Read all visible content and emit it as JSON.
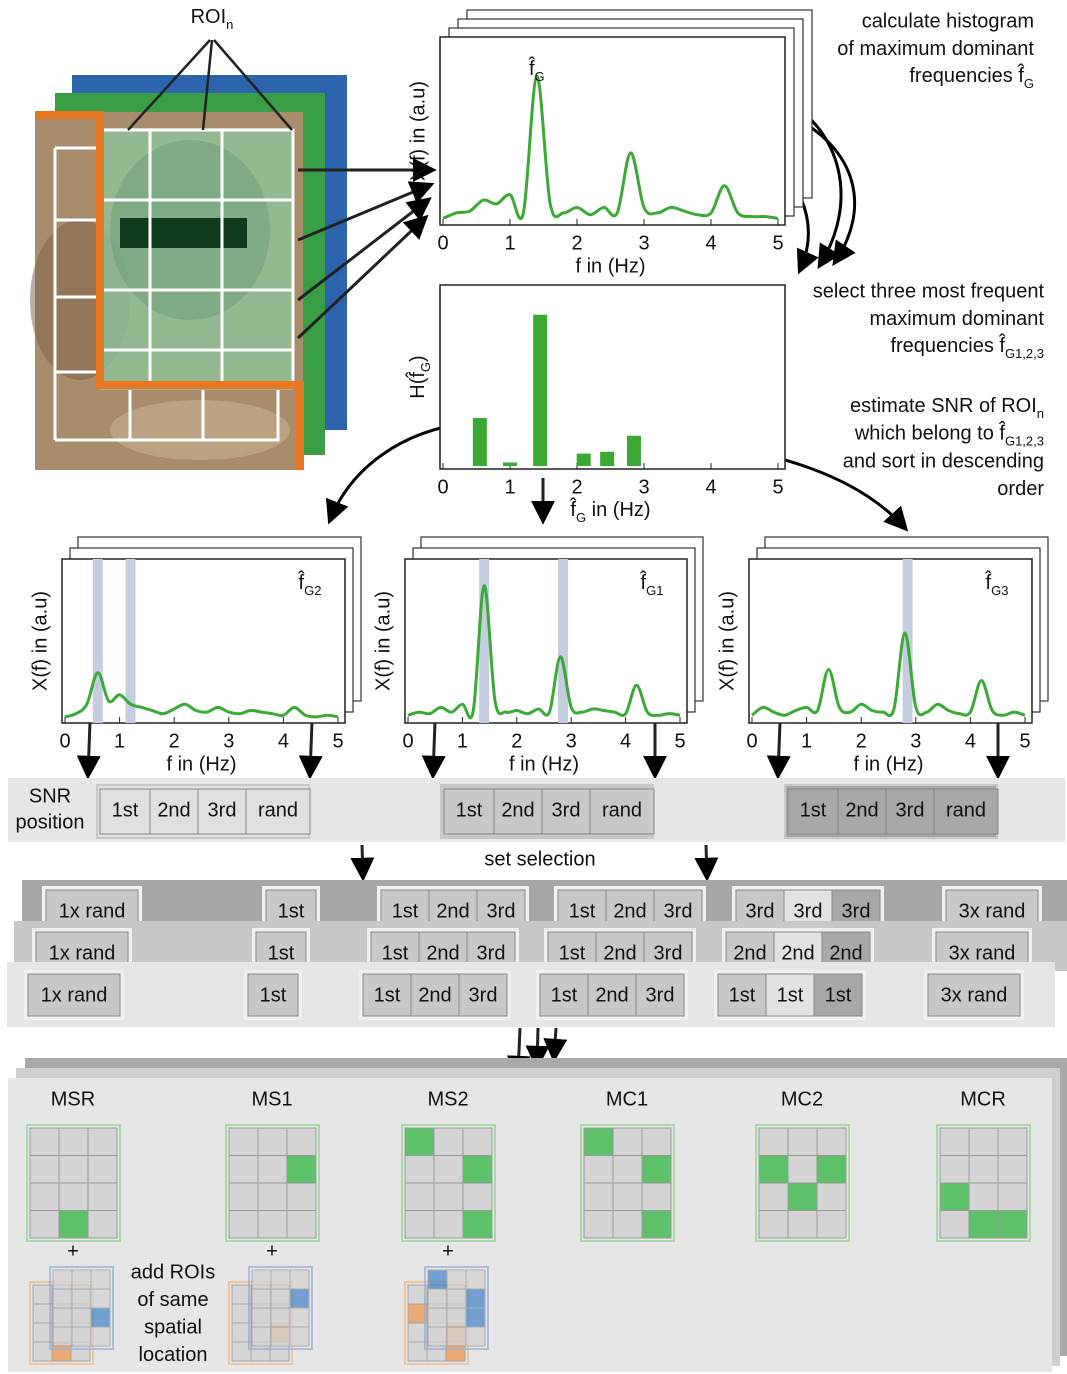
{
  "roi_label": {
    "text": "ROI",
    "sub": "n"
  },
  "steps": [
    [
      "calculate histogram",
      "of maximum dominant",
      {
        "text": "frequencies f̂",
        "sub": "G"
      }
    ],
    [
      "select three most frequent",
      "maximum dominant",
      {
        "text": "frequencies f̂",
        "sub": "G1,2,3"
      }
    ],
    [
      {
        "text": "estimate SNR of ROI",
        "sub": "n"
      },
      {
        "text": "which belong to f̂",
        "sub": "G1,2,3"
      },
      "and sort in descending",
      "order"
    ]
  ],
  "spectrum": {
    "x": [
      0,
      0.2,
      0.4,
      0.6,
      0.8,
      1.0,
      1.2,
      1.4,
      1.6,
      1.8,
      2.0,
      2.2,
      2.4,
      2.6,
      2.8,
      3.0,
      3.2,
      3.4,
      3.6,
      3.8,
      4.0,
      4.2,
      4.4,
      4.6,
      4.8,
      5.0
    ],
    "values": [
      0.02,
      0.05,
      0.06,
      0.12,
      0.1,
      0.15,
      0.05,
      0.8,
      0.1,
      0.05,
      0.08,
      0.04,
      0.08,
      0.05,
      0.38,
      0.08,
      0.05,
      0.08,
      0.06,
      0.04,
      0.05,
      0.2,
      0.05,
      0.03,
      0.03,
      0.02
    ],
    "xlim": [
      0,
      5
    ],
    "ylim": [
      0,
      1
    ],
    "xticks": [
      0,
      1,
      2,
      3,
      4,
      5
    ],
    "ylabel": "X(f) in (a.u)",
    "xlabel": "f in (Hz)",
    "peak_label": {
      "text": "f̂",
      "sub": "G"
    },
    "color": "#3aaa35"
  },
  "histogram": {
    "x": [
      0.55,
      1.0,
      1.45,
      2.1,
      2.45,
      2.85
    ],
    "values": [
      0.27,
      0.02,
      0.85,
      0.07,
      0.08,
      0.17
    ],
    "xlim": [
      0,
      5
    ],
    "ylim": [
      0,
      1
    ],
    "xticks": [
      0,
      1,
      2,
      3,
      4,
      5
    ],
    "ylabel": {
      "text": "H(f̂",
      "sub": "G",
      "tail": ")"
    },
    "xlabel": {
      "text": "f̂",
      "sub": "G",
      "tail": " in (Hz)"
    },
    "color": "#3aaa35"
  },
  "dominant_spectra": [
    {
      "peak_label": {
        "text": "f̂",
        "sub": "G2"
      },
      "x": [
        0,
        0.2,
        0.4,
        0.6,
        0.8,
        1.0,
        1.2,
        1.4,
        1.6,
        1.8,
        2.0,
        2.2,
        2.4,
        2.6,
        2.8,
        3.0,
        3.2,
        3.4,
        3.6,
        3.8,
        4.0,
        4.2,
        4.4,
        4.6,
        4.8,
        5.0
      ],
      "values": [
        0.02,
        0.04,
        0.1,
        0.3,
        0.12,
        0.16,
        0.1,
        0.08,
        0.06,
        0.04,
        0.07,
        0.1,
        0.06,
        0.05,
        0.08,
        0.05,
        0.04,
        0.06,
        0.05,
        0.04,
        0.03,
        0.08,
        0.03,
        0.02,
        0.03,
        0.02
      ],
      "bands": [
        0.6,
        1.2
      ],
      "xlim": [
        0,
        5
      ],
      "ylim": [
        0,
        1
      ],
      "xticks": [
        0,
        1,
        2,
        3,
        4,
        5
      ],
      "ylabel": "X(f) in (a.u)",
      "xlabel": "f in (Hz)",
      "color": "#3aaa35"
    },
    {
      "peak_label": {
        "text": "f̂",
        "sub": "G1"
      },
      "x": [
        0,
        0.2,
        0.4,
        0.6,
        0.8,
        1.0,
        1.2,
        1.4,
        1.6,
        1.8,
        2.0,
        2.2,
        2.4,
        2.6,
        2.8,
        3.0,
        3.2,
        3.4,
        3.6,
        3.8,
        4.0,
        4.2,
        4.4,
        4.6,
        4.8,
        5.0
      ],
      "values": [
        0.03,
        0.05,
        0.04,
        0.08,
        0.05,
        0.1,
        0.06,
        0.85,
        0.12,
        0.05,
        0.06,
        0.04,
        0.07,
        0.05,
        0.4,
        0.08,
        0.05,
        0.07,
        0.06,
        0.05,
        0.04,
        0.22,
        0.05,
        0.03,
        0.04,
        0.03
      ],
      "bands": [
        1.4,
        2.85
      ],
      "xlim": [
        0,
        5
      ],
      "ylim": [
        0,
        1
      ],
      "xticks": [
        0,
        1,
        2,
        3,
        4,
        5
      ],
      "ylabel": "X(f) in (a.u)",
      "xlabel": "f in (Hz)",
      "color": "#3aaa35"
    },
    {
      "peak_label": {
        "text": "f̂",
        "sub": "G3"
      },
      "x": [
        0,
        0.2,
        0.4,
        0.6,
        0.8,
        1.0,
        1.2,
        1.4,
        1.6,
        1.8,
        2.0,
        2.2,
        2.4,
        2.6,
        2.8,
        3.0,
        3.2,
        3.4,
        3.6,
        3.8,
        4.0,
        4.2,
        4.4,
        4.6,
        4.8,
        5.0
      ],
      "values": [
        0.03,
        0.08,
        0.05,
        0.03,
        0.06,
        0.08,
        0.06,
        0.32,
        0.08,
        0.05,
        0.1,
        0.06,
        0.05,
        0.07,
        0.55,
        0.08,
        0.05,
        0.1,
        0.06,
        0.04,
        0.05,
        0.25,
        0.06,
        0.03,
        0.05,
        0.03
      ],
      "bands": [
        2.85
      ],
      "xlim": [
        0,
        5
      ],
      "ylim": [
        0,
        1
      ],
      "xticks": [
        0,
        1,
        2,
        3,
        4,
        5
      ],
      "ylabel": "X(f) in (a.u)",
      "xlabel": "f in (Hz)",
      "color": "#3aaa35"
    }
  ],
  "snr": {
    "title": [
      "SNR",
      "position"
    ],
    "groups": [
      [
        "1st",
        "2nd",
        "3rd",
        "rand"
      ],
      [
        "1st",
        "2nd",
        "3rd",
        "rand"
      ],
      [
        "1st",
        "2nd",
        "3rd",
        "rand"
      ]
    ]
  },
  "set_selection": "set selection",
  "set_rows": [
    [
      [
        "1x rand"
      ],
      [
        "1st"
      ],
      [
        "1st",
        "2nd",
        "3rd"
      ],
      [
        "1st",
        "2nd",
        "3rd"
      ],
      [
        "3rd",
        "3rd",
        "3rd"
      ],
      [
        "3x rand"
      ]
    ],
    [
      [
        "1x rand"
      ],
      [
        "1st"
      ],
      [
        "1st",
        "2nd",
        "3rd"
      ],
      [
        "1st",
        "2nd",
        "3rd"
      ],
      [
        "2nd",
        "2nd",
        "2nd"
      ],
      [
        "3x rand"
      ]
    ],
    [
      [
        "1x rand"
      ],
      [
        "1st"
      ],
      [
        "1st",
        "2nd",
        "3rd"
      ],
      [
        "1st",
        "2nd",
        "3rd"
      ],
      [
        "1st",
        "1st",
        "1st"
      ],
      [
        "3x rand"
      ]
    ]
  ],
  "methods": [
    "MSR",
    "MS1",
    "MS2",
    "MC1",
    "MC2",
    "MCR"
  ],
  "plus": [
    "+",
    "+",
    "+"
  ],
  "add_note": [
    "add ROIs",
    "of same",
    "spatial",
    "location"
  ]
}
